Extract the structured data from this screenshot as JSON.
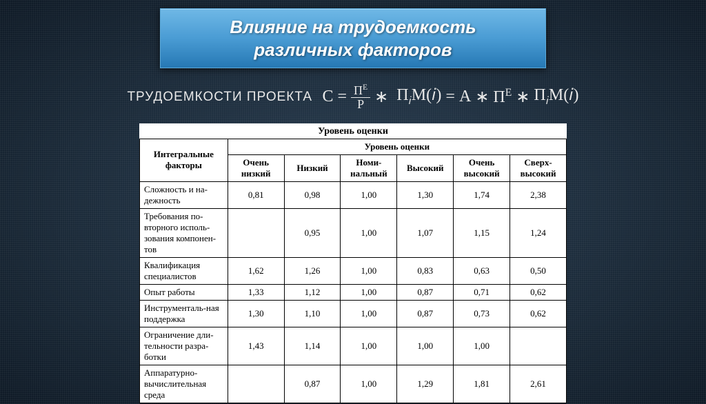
{
  "title": {
    "line1": "Влияние на трудоемкость",
    "line2": "различных факторов"
  },
  "formula": {
    "label": "Трудоемкости проекта",
    "C": "C",
    "eq1": "=",
    "fraction": {
      "num": "Пᴱ",
      "den": "P"
    },
    "star": "∗",
    "term1": "ΠᵢM(i)",
    "eq2": "=",
    "A": "A",
    "PiE": "Пᴱ",
    "PiM": "ΠᵢM(i)"
  },
  "table": {
    "caption": "Уровень оценки",
    "header_factor": "Интегральные факторы",
    "header_group": "Уровень оценки",
    "columns": [
      "Очень низкий",
      "Низкий",
      "Номи-нальный",
      "Высокий",
      "Очень высокий",
      "Сверх-высокий"
    ],
    "rows": [
      {
        "factor": "Сложность и на-дежность",
        "vals": [
          "0,81",
          "0,98",
          "1,00",
          "1,30",
          "1,74",
          "2,38"
        ]
      },
      {
        "factor": "Требования по-вторного исполь-зования компонен-тов",
        "vals": [
          "",
          "0,95",
          "1,00",
          "1,07",
          "1,15",
          "1,24"
        ]
      },
      {
        "factor": "Квалификация специалистов",
        "vals": [
          "1,62",
          "1,26",
          "1,00",
          "0,83",
          "0,63",
          "0,50"
        ]
      },
      {
        "factor": "Опыт работы",
        "vals": [
          "1,33",
          "1,12",
          "1,00",
          "0,87",
          "0,71",
          "0,62"
        ]
      },
      {
        "factor": "Инструменталь-ная поддержка",
        "vals": [
          "1,30",
          "1,10",
          "1,00",
          "0,87",
          "0,73",
          "0,62"
        ]
      },
      {
        "factor": "Ограничение дли-тельности разра-ботки",
        "vals": [
          "1,43",
          "1,14",
          "1,00",
          "1,00",
          "1,00",
          ""
        ]
      },
      {
        "factor": "Аппаратурно-вычислительная среда",
        "vals": [
          "",
          "0,87",
          "1,00",
          "1,29",
          "1,81",
          "2,61"
        ]
      }
    ]
  },
  "style": {
    "title_bg_top": "#6fb8e6",
    "title_bg_bottom": "#2678b4",
    "page_bg": "#1a2a3a",
    "table_bg": "#ffffff",
    "table_border": "#000000",
    "title_fontsize": 26,
    "formula_fontsize": 24,
    "table_fontsize": 13
  }
}
